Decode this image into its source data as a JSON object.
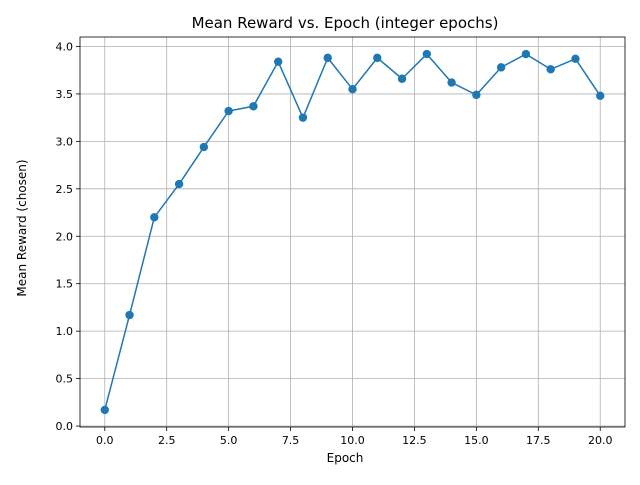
{
  "chart_data": {
    "type": "line",
    "title": "Mean Reward vs. Epoch (integer epochs)",
    "xlabel": "Epoch",
    "ylabel": "Mean Reward (chosen)",
    "xlim": [
      -1,
      21
    ],
    "ylim": [
      -0.01,
      4.1
    ],
    "xticks": [
      0.0,
      2.5,
      5.0,
      7.5,
      10.0,
      12.5,
      15.0,
      17.5,
      20.0
    ],
    "xtick_labels": [
      "0.0",
      "2.5",
      "5.0",
      "7.5",
      "10.0",
      "12.5",
      "15.0",
      "17.5",
      "20.0"
    ],
    "yticks": [
      0.0,
      0.5,
      1.0,
      1.5,
      2.0,
      2.5,
      3.0,
      3.5,
      4.0
    ],
    "ytick_labels": [
      "0.0",
      "0.5",
      "1.0",
      "1.5",
      "2.0",
      "2.5",
      "3.0",
      "3.5",
      "4.0"
    ],
    "grid": true,
    "series": [
      {
        "color": "#1f77b4",
        "marker": "circle",
        "x": [
          0,
          1,
          2,
          3,
          4,
          5,
          6,
          7,
          8,
          9,
          10,
          11,
          12,
          13,
          14,
          15,
          16,
          17,
          18,
          19,
          20
        ],
        "y": [
          0.17,
          1.17,
          2.2,
          2.55,
          2.94,
          3.32,
          3.37,
          3.84,
          3.25,
          3.88,
          3.55,
          3.88,
          3.66,
          3.92,
          3.62,
          3.49,
          3.78,
          3.92,
          3.76,
          3.87,
          3.48
        ]
      }
    ]
  }
}
